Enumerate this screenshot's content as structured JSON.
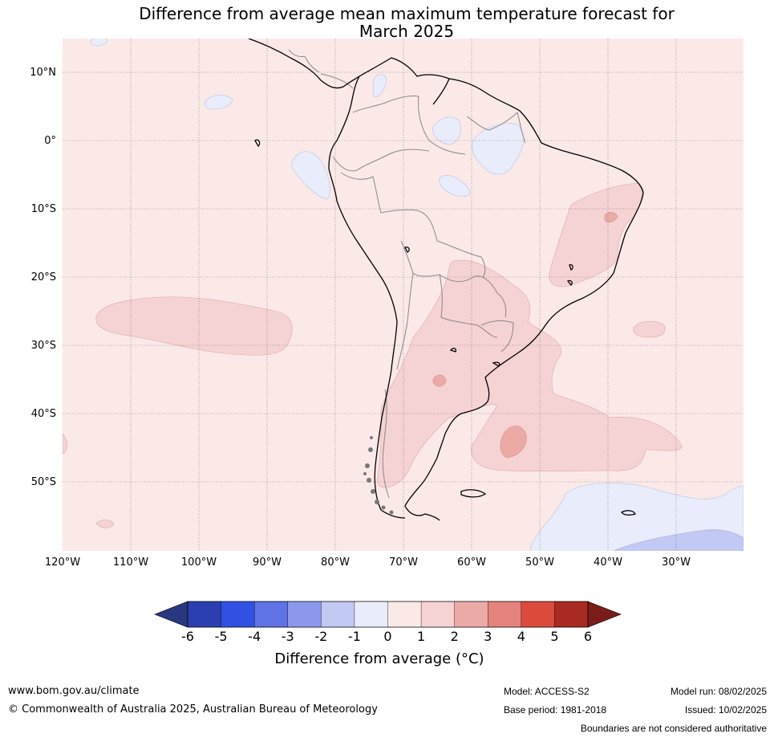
{
  "title": {
    "line1": "Difference from average mean maximum temperature forecast for",
    "line2": "March 2025"
  },
  "map": {
    "latitude_labels": [
      "10°N",
      "0°",
      "10°S",
      "20°S",
      "30°S",
      "40°S",
      "50°S"
    ],
    "longitude_labels": [
      "120°W",
      "110°W",
      "100°W",
      "90°W",
      "80°W",
      "70°W",
      "60°W",
      "50°W",
      "40°W",
      "30°W"
    ],
    "background_anomaly_color": "#fbe9e8"
  },
  "colorbar": {
    "ticks": [
      "-6",
      "-5",
      "-4",
      "-3",
      "-2",
      "-1",
      "0",
      "1",
      "2",
      "3",
      "4",
      "5",
      "6"
    ],
    "colors": [
      "#273880",
      "#2c3fb0",
      "#3151e3",
      "#5f73e5",
      "#8a99ec",
      "#c2c9f3",
      "#e9ecfb",
      "#fbe9e8",
      "#f5d3d2",
      "#ecaaa7",
      "#e6827c",
      "#dc4a3e",
      "#a92a20",
      "#7a1d1a"
    ],
    "label": "Difference from average (°C)"
  },
  "footer": {
    "website": "www.bom.gov.au/climate",
    "copyright": "© Commonwealth of Australia 2025, Australian Bureau of Meteorology",
    "model": "Model: ACCESS-S2",
    "base_period": "Base period: 1981-2018",
    "model_run": "Model run: 08/02/2025",
    "issued": "Issued: 10/02/2025",
    "disclaimer": "Boundaries are not considered authoritative"
  }
}
